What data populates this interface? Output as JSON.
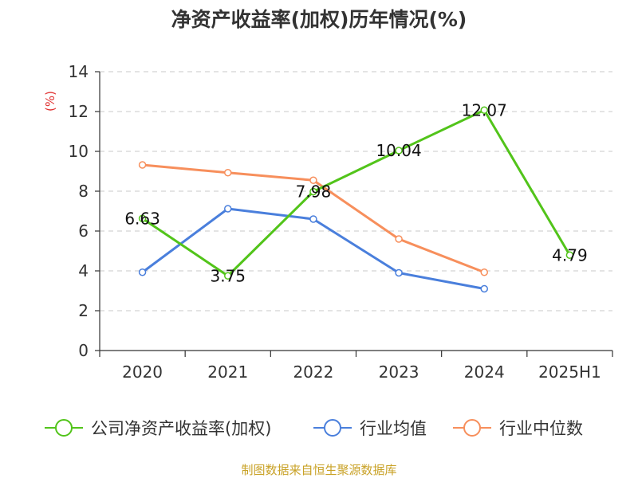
{
  "chart_data": {
    "type": "line",
    "title": "净资产收益率(加权)历年情况(%)",
    "ylabel": "(%)",
    "xlabel": "",
    "categories": [
      "2020",
      "2021",
      "2022",
      "2023",
      "2024",
      "2025H1"
    ],
    "ylim": [
      0,
      14
    ],
    "yticks": [
      0,
      2,
      4,
      6,
      8,
      10,
      12,
      14
    ],
    "grid": true,
    "legend_position": "bottom",
    "series": [
      {
        "name": "公司净资产收益率(加权)",
        "color": "#52c41a",
        "values": [
          6.63,
          3.75,
          7.98,
          10.04,
          12.07,
          4.79
        ],
        "labels": [
          "6.63",
          "3.75",
          "7.98",
          "10.04",
          "12.07",
          "4.79"
        ]
      },
      {
        "name": "行业均值",
        "color": "#4a7fdc",
        "values": [
          3.93,
          7.12,
          6.6,
          3.9,
          3.1,
          null
        ]
      },
      {
        "name": "行业中位数",
        "color": "#f78f5c",
        "values": [
          9.32,
          8.93,
          8.55,
          5.6,
          3.93,
          null
        ]
      }
    ],
    "source": "制图数据来自恒生聚源数据库"
  }
}
